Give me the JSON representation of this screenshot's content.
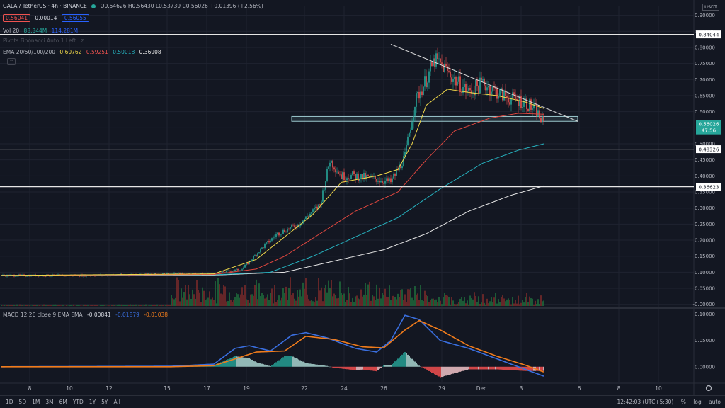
{
  "header": {
    "symbol": "GALA / TetherUS · 4h · BINANCE",
    "ohlc": "O0.54626 H0.56430 L0.53739 C0.56026 +0.01396 (+2.56%)",
    "bid": "0.56041",
    "spread": "0.00014",
    "ask": "0.56055"
  },
  "indicators": {
    "vol": {
      "label": "Vol 20",
      "v1": "88.344M",
      "v2": "114.281M"
    },
    "pivots": "Pivots Fibonacci Auto 1 Left",
    "ema": {
      "label": "EMA 20/50/100/200",
      "v20": "0.60762",
      "v50": "0.59251",
      "v100": "0.50018",
      "v200": "0.36908"
    },
    "macd": {
      "label": "MACD 12 26 close 9 EMA EMA",
      "hist": "-0.00841",
      "macd": "-0.01879",
      "signal": "-0.01038"
    }
  },
  "currency": "USDT",
  "colors": {
    "bg": "#131722",
    "grid": "#1f2330",
    "up": "#26a69a",
    "down": "#ef5350",
    "ema20": "#f0d84a",
    "ema50": "#e0473f",
    "ema100": "#26b3c0",
    "ema200": "#e6e6e6",
    "macd": "#3a6fe0",
    "signal": "#f07c1c",
    "trend": "#e0e0e0"
  },
  "bottom": {
    "ranges": [
      "1D",
      "5D",
      "1M",
      "3M",
      "6M",
      "YTD",
      "1Y",
      "5Y",
      "All"
    ],
    "time": "12:42:03 (UTC+5:30)",
    "opts": [
      "%",
      "log",
      "auto"
    ]
  },
  "chart_data": {
    "type": "candlestick",
    "x_tick_labels": [
      "8",
      "10",
      "12",
      "15",
      "17",
      "19",
      "22",
      "24",
      "26",
      "29",
      "Dec",
      "3",
      "6",
      "8",
      "10"
    ],
    "price_axis": {
      "ylim": [
        -0.005,
        0.93
      ],
      "ticks": [
        0.9,
        0.8,
        0.75,
        0.7,
        0.65,
        0.6,
        0.5,
        0.45,
        0.4,
        0.35,
        0.3,
        0.25,
        0.2,
        0.15,
        0.1,
        0.05,
        "-0.00000"
      ]
    },
    "macd_axis": {
      "ylim": [
        -0.03,
        0.105
      ],
      "ticks": [
        "0.10000",
        "0.05000",
        "0.00000"
      ]
    },
    "horizontal_levels": [
      0.84044,
      0.48326,
      0.36623
    ],
    "level_labels": [
      "0.84044",
      "0.48326",
      "0.36623"
    ],
    "last_price": {
      "value": 0.56026,
      "label": "0.56026",
      "countdown": "47:56"
    },
    "support_zone": [
      0.57,
      0.585
    ],
    "trendline": {
      "from": 0.81,
      "to": 0.57
    },
    "candles_anchor": [
      [
        0,
        0.09
      ],
      [
        60,
        0.09
      ],
      [
        120,
        0.095
      ],
      [
        150,
        0.095
      ],
      [
        170,
        0.11
      ],
      [
        185,
        0.18
      ],
      [
        195,
        0.22
      ],
      [
        210,
        0.25
      ],
      [
        225,
        0.31
      ],
      [
        232,
        0.45
      ],
      [
        240,
        0.4
      ],
      [
        250,
        0.4
      ],
      [
        265,
        0.39
      ],
      [
        275,
        0.38
      ],
      [
        285,
        0.46
      ],
      [
        292,
        0.63
      ],
      [
        300,
        0.7
      ],
      [
        306,
        0.76
      ],
      [
        312,
        0.74
      ],
      [
        320,
        0.7
      ],
      [
        330,
        0.66
      ],
      [
        340,
        0.69
      ],
      [
        350,
        0.66
      ],
      [
        360,
        0.64
      ],
      [
        370,
        0.63
      ],
      [
        378,
        0.6
      ],
      [
        383,
        0.56
      ]
    ],
    "ema20_anchor": [
      [
        0,
        0.09
      ],
      [
        150,
        0.095
      ],
      [
        180,
        0.14
      ],
      [
        200,
        0.21
      ],
      [
        220,
        0.28
      ],
      [
        240,
        0.38
      ],
      [
        265,
        0.4
      ],
      [
        280,
        0.42
      ],
      [
        290,
        0.5
      ],
      [
        300,
        0.62
      ],
      [
        315,
        0.67
      ],
      [
        330,
        0.66
      ],
      [
        350,
        0.65
      ],
      [
        370,
        0.63
      ],
      [
        383,
        0.61
      ]
    ],
    "ema50_anchor": [
      [
        0,
        0.09
      ],
      [
        150,
        0.093
      ],
      [
        180,
        0.11
      ],
      [
        200,
        0.15
      ],
      [
        225,
        0.22
      ],
      [
        250,
        0.29
      ],
      [
        280,
        0.35
      ],
      [
        300,
        0.45
      ],
      [
        320,
        0.54
      ],
      [
        345,
        0.58
      ],
      [
        365,
        0.595
      ],
      [
        383,
        0.592
      ]
    ],
    "ema100_anchor": [
      [
        0,
        0.09
      ],
      [
        150,
        0.092
      ],
      [
        190,
        0.1
      ],
      [
        220,
        0.15
      ],
      [
        250,
        0.21
      ],
      [
        280,
        0.27
      ],
      [
        310,
        0.36
      ],
      [
        340,
        0.44
      ],
      [
        365,
        0.48
      ],
      [
        383,
        0.5
      ]
    ],
    "ema200_anchor": [
      [
        0,
        0.09
      ],
      [
        150,
        0.091
      ],
      [
        200,
        0.1
      ],
      [
        230,
        0.13
      ],
      [
        270,
        0.17
      ],
      [
        300,
        0.22
      ],
      [
        330,
        0.29
      ],
      [
        360,
        0.34
      ],
      [
        383,
        0.369
      ]
    ],
    "macd_line_anchor": [
      [
        0,
        0.0
      ],
      [
        120,
        0.001
      ],
      [
        150,
        0.005
      ],
      [
        165,
        0.035
      ],
      [
        175,
        0.04
      ],
      [
        190,
        0.03
      ],
      [
        205,
        0.06
      ],
      [
        215,
        0.065
      ],
      [
        230,
        0.055
      ],
      [
        250,
        0.035
      ],
      [
        265,
        0.028
      ],
      [
        275,
        0.05
      ],
      [
        285,
        0.098
      ],
      [
        295,
        0.09
      ],
      [
        310,
        0.05
      ],
      [
        330,
        0.035
      ],
      [
        350,
        0.015
      ],
      [
        365,
        0.0
      ],
      [
        383,
        -0.018
      ]
    ],
    "signal_anchor": [
      [
        0,
        0.0
      ],
      [
        120,
        0.0
      ],
      [
        150,
        0.002
      ],
      [
        165,
        0.015
      ],
      [
        180,
        0.028
      ],
      [
        200,
        0.03
      ],
      [
        215,
        0.058
      ],
      [
        235,
        0.052
      ],
      [
        255,
        0.038
      ],
      [
        270,
        0.036
      ],
      [
        285,
        0.07
      ],
      [
        295,
        0.088
      ],
      [
        310,
        0.07
      ],
      [
        330,
        0.04
      ],
      [
        350,
        0.02
      ],
      [
        370,
        0.003
      ],
      [
        383,
        -0.01
      ]
    ]
  }
}
